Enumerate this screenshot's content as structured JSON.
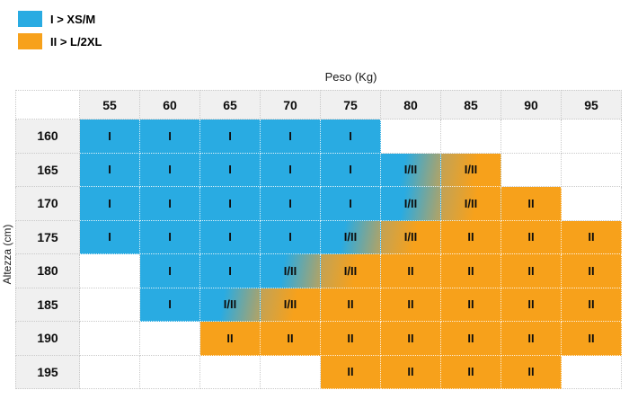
{
  "colors": {
    "blue": "#29abe2",
    "orange": "#f7a11b",
    "blend": "#bda25b",
    "header_bg": "#f0f0f0",
    "grid": "#c9c9c9",
    "text": "#0d0d0d"
  },
  "legend": {
    "items": [
      {
        "label": "I > XS/M",
        "color": "#29abe2",
        "swatch": "cyan-swatch"
      },
      {
        "label": "II > L/2XL",
        "color": "#f7a11b",
        "swatch": "orange-swatch"
      }
    ]
  },
  "chart_data": {
    "type": "heatmap",
    "x_axis_label": "Peso (Kg)",
    "y_axis_label": "Altezza (cm)",
    "x_categories": [
      "55",
      "60",
      "65",
      "70",
      "75",
      "80",
      "85",
      "90",
      "95"
    ],
    "y_categories": [
      "160",
      "165",
      "170",
      "175",
      "180",
      "185",
      "190",
      "195"
    ],
    "values": [
      [
        "I",
        "I",
        "I",
        "I",
        "I",
        "",
        "",
        "",
        ""
      ],
      [
        "I",
        "I",
        "I",
        "I",
        "I",
        "I/II",
        "I/II",
        "",
        ""
      ],
      [
        "I",
        "I",
        "I",
        "I",
        "I",
        "I/II",
        "I/II",
        "II",
        ""
      ],
      [
        "I",
        "I",
        "I",
        "I",
        "I/II",
        "I/II",
        "II",
        "II",
        "II"
      ],
      [
        "",
        "I",
        "I",
        "I/II",
        "I/II",
        "II",
        "II",
        "II",
        "II"
      ],
      [
        "",
        "I",
        "I/II",
        "I/II",
        "II",
        "II",
        "II",
        "II",
        "II"
      ],
      [
        "",
        "",
        "II",
        "II",
        "II",
        "II",
        "II",
        "II",
        "II"
      ],
      [
        "",
        "",
        "",
        "",
        "II",
        "II",
        "II",
        "II",
        ""
      ]
    ],
    "fills": [
      [
        "B",
        "B",
        "B",
        "B",
        "B",
        "",
        "",
        "",
        ""
      ],
      [
        "B",
        "B",
        "B",
        "B",
        "B",
        "G1",
        "G2",
        "",
        ""
      ],
      [
        "B",
        "B",
        "B",
        "B",
        "B",
        "G1",
        "G2",
        "O",
        ""
      ],
      [
        "B",
        "B",
        "B",
        "B",
        "G1",
        "G2",
        "O",
        "O",
        "O"
      ],
      [
        "",
        "B",
        "B",
        "G1",
        "G2",
        "O",
        "O",
        "O",
        "O"
      ],
      [
        "",
        "B",
        "G1",
        "G2",
        "O",
        "O",
        "O",
        "O",
        "O"
      ],
      [
        "",
        "",
        "O",
        "O",
        "O",
        "O",
        "O",
        "O",
        "O"
      ],
      [
        "",
        "",
        "",
        "",
        "O",
        "O",
        "O",
        "O",
        ""
      ]
    ],
    "legend_entries": [
      "I > XS/M",
      "II > L/2XL"
    ],
    "grid": "dotted",
    "legend_position": "top-left"
  }
}
